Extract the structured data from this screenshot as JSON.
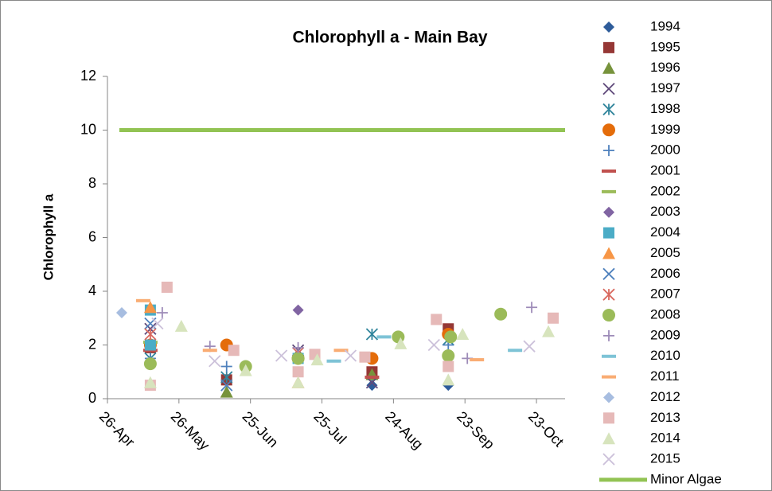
{
  "chart_data": {
    "type": "scatter",
    "title": "Chlorophyll a - Main Bay",
    "ylabel": "Chlorophyll a",
    "xlim": [
      116,
      308
    ],
    "xticks": [
      {
        "value": 116,
        "label": "26-Apr"
      },
      {
        "value": 146,
        "label": "26-May"
      },
      {
        "value": 176,
        "label": "25-Jun"
      },
      {
        "value": 206,
        "label": "25-Jul"
      },
      {
        "value": 236,
        "label": "24-Aug"
      },
      {
        "value": 266,
        "label": "23-Sep"
      },
      {
        "value": 296,
        "label": "23-Oct"
      }
    ],
    "ylim": [
      0,
      12
    ],
    "yticks": [
      0,
      2,
      4,
      6,
      8,
      10,
      12
    ],
    "grid": false,
    "legend": "right",
    "series": [
      {
        "name": "1994",
        "color": "#2e5c9a",
        "marker": "diamond",
        "x": [
          227,
          259
        ],
        "values": [
          0.5,
          0.5
        ]
      },
      {
        "name": "1995",
        "color": "#953735",
        "marker": "square",
        "x": [
          134,
          166,
          227,
          259
        ],
        "values": [
          1.9,
          0.7,
          1.0,
          2.6
        ]
      },
      {
        "name": "1996",
        "color": "#77933c",
        "marker": "triangle",
        "x": [
          166,
          227
        ],
        "values": [
          0.25,
          0.9
        ]
      },
      {
        "name": "1997",
        "color": "#604a7b",
        "marker": "x",
        "x": [
          134,
          196,
          227
        ],
        "values": [
          2.6,
          1.8,
          0.6
        ]
      },
      {
        "name": "1998",
        "color": "#31859c",
        "marker": "asterisk",
        "x": [
          134,
          166,
          227,
          259
        ],
        "values": [
          1.5,
          0.8,
          2.4,
          2.2
        ]
      },
      {
        "name": "1999",
        "color": "#e46c0a",
        "marker": "circle",
        "x": [
          134,
          166,
          196,
          227,
          259
        ],
        "values": [
          2.0,
          2.0,
          1.5,
          1.5,
          2.4
        ]
      },
      {
        "name": "2000",
        "color": "#4f81bd",
        "marker": "plus",
        "x": [
          134,
          166,
          196,
          259
        ],
        "values": [
          1.5,
          1.2,
          1.6,
          2.0
        ]
      },
      {
        "name": "2001",
        "color": "#c0504d",
        "marker": "dash",
        "x": [
          134,
          227
        ],
        "values": [
          1.8,
          0.8
        ]
      },
      {
        "name": "2002",
        "color": "#9bbb59",
        "marker": "dash",
        "x": [
          134
        ],
        "values": [
          2.1
        ]
      },
      {
        "name": "2003",
        "color": "#8064a2",
        "marker": "diamond",
        "x": [
          196
        ],
        "values": [
          3.3
        ]
      },
      {
        "name": "2004",
        "color": "#4bacc6",
        "marker": "square",
        "x": [
          134,
          134,
          196
        ],
        "values": [
          3.3,
          2.0,
          1.5
        ]
      },
      {
        "name": "2005",
        "color": "#f79646",
        "marker": "triangle",
        "x": [
          134,
          196
        ],
        "values": [
          3.4,
          0.6
        ]
      },
      {
        "name": "2006",
        "color": "#4f81bd",
        "marker": "x",
        "x": [
          134,
          166
        ],
        "values": [
          2.8,
          0.5
        ]
      },
      {
        "name": "2007",
        "color": "#d9695f",
        "marker": "asterisk",
        "x": [
          196,
          134
        ],
        "values": [
          1.7,
          2.4
        ]
      },
      {
        "name": "2008",
        "color": "#9bbb59",
        "marker": "circle",
        "x": [
          134,
          174,
          196,
          238,
          259,
          260,
          281
        ],
        "values": [
          1.3,
          1.2,
          1.5,
          2.3,
          1.6,
          2.3,
          3.15
        ]
      },
      {
        "name": "2009",
        "color": "#9d8bb8",
        "marker": "plus",
        "x": [
          139,
          159,
          196,
          267,
          294
        ],
        "values": [
          3.2,
          1.95,
          1.9,
          1.5,
          3.4
        ]
      },
      {
        "name": "2010",
        "color": "#7ec3d6",
        "marker": "dash",
        "x": [
          211,
          232,
          287
        ],
        "values": [
          1.4,
          2.3,
          1.8
        ]
      },
      {
        "name": "2011",
        "color": "#f9ac73",
        "marker": "dash",
        "x": [
          131,
          159,
          214,
          271
        ],
        "values": [
          3.65,
          1.8,
          1.8,
          1.45
        ]
      },
      {
        "name": "2012",
        "color": "#a7bde0",
        "marker": "diamond",
        "x": [
          122
        ],
        "values": [
          3.2
        ]
      },
      {
        "name": "2013",
        "color": "#e6b9b8",
        "marker": "square",
        "x": [
          141,
          169,
          203,
          224,
          254,
          259,
          303,
          134,
          196
        ],
        "values": [
          4.15,
          1.8,
          1.65,
          1.55,
          2.95,
          1.2,
          3.0,
          0.5,
          1.0
        ]
      },
      {
        "name": "2014",
        "color": "#d7e4bd",
        "marker": "triangle",
        "x": [
          147,
          134,
          174,
          204,
          196,
          239,
          265,
          259,
          301
        ],
        "values": [
          2.7,
          0.6,
          1.05,
          1.45,
          0.6,
          2.05,
          2.4,
          0.7,
          2.5
        ]
      },
      {
        "name": "2015",
        "color": "#ccc1da",
        "marker": "x",
        "x": [
          137,
          161,
          189,
          218,
          253,
          293
        ],
        "values": [
          2.8,
          1.4,
          1.6,
          1.6,
          2.0,
          1.95
        ]
      },
      {
        "name": "Minor Algae",
        "color": "#92c353",
        "marker": "line",
        "x": [
          121,
          308
        ],
        "values": [
          10,
          10
        ]
      }
    ]
  }
}
